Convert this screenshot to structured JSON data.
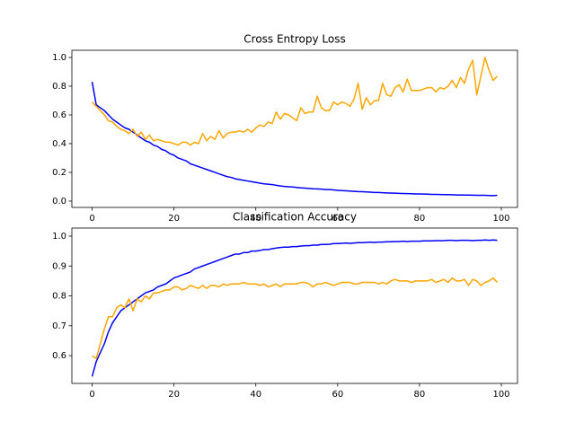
{
  "chart_data": [
    {
      "type": "line",
      "title": "Cross Entropy Loss",
      "x": [
        0,
        1,
        2,
        3,
        4,
        5,
        6,
        7,
        8,
        9,
        10,
        11,
        12,
        13,
        14,
        15,
        16,
        17,
        18,
        19,
        20,
        21,
        22,
        23,
        24,
        25,
        26,
        27,
        28,
        29,
        30,
        31,
        32,
        33,
        34,
        35,
        36,
        37,
        38,
        39,
        40,
        41,
        42,
        43,
        44,
        45,
        46,
        47,
        48,
        49,
        50,
        51,
        52,
        53,
        54,
        55,
        56,
        57,
        58,
        59,
        60,
        61,
        62,
        63,
        64,
        65,
        66,
        67,
        68,
        69,
        70,
        71,
        72,
        73,
        74,
        75,
        76,
        77,
        78,
        79,
        80,
        81,
        82,
        83,
        84,
        85,
        86,
        87,
        88,
        89,
        90,
        91,
        92,
        93,
        94,
        95,
        96,
        97,
        98,
        99
      ],
      "series": [
        {
          "color": "#0000ff",
          "values": [
            0.83,
            0.67,
            0.65,
            0.63,
            0.6,
            0.57,
            0.55,
            0.53,
            0.51,
            0.5,
            0.48,
            0.46,
            0.44,
            0.42,
            0.41,
            0.39,
            0.38,
            0.36,
            0.35,
            0.33,
            0.32,
            0.3,
            0.29,
            0.28,
            0.26,
            0.25,
            0.24,
            0.23,
            0.22,
            0.21,
            0.2,
            0.19,
            0.18,
            0.17,
            0.165,
            0.155,
            0.15,
            0.145,
            0.14,
            0.135,
            0.13,
            0.125,
            0.12,
            0.118,
            0.115,
            0.11,
            0.105,
            0.102,
            0.1,
            0.098,
            0.095,
            0.092,
            0.09,
            0.088,
            0.086,
            0.085,
            0.083,
            0.08,
            0.08,
            0.078,
            0.075,
            0.073,
            0.072,
            0.07,
            0.068,
            0.066,
            0.065,
            0.064,
            0.062,
            0.06,
            0.06,
            0.058,
            0.057,
            0.056,
            0.055,
            0.054,
            0.053,
            0.052,
            0.051,
            0.05,
            0.05,
            0.049,
            0.048,
            0.047,
            0.047,
            0.046,
            0.045,
            0.045,
            0.044,
            0.043,
            0.043,
            0.042,
            0.042,
            0.041,
            0.04,
            0.04,
            0.04,
            0.039,
            0.038,
            0.04
          ]
        },
        {
          "color": "#ffa500",
          "values": [
            0.69,
            0.66,
            0.63,
            0.6,
            0.56,
            0.55,
            0.52,
            0.5,
            0.49,
            0.47,
            0.5,
            0.45,
            0.48,
            0.43,
            0.46,
            0.42,
            0.43,
            0.42,
            0.41,
            0.41,
            0.4,
            0.39,
            0.41,
            0.41,
            0.39,
            0.41,
            0.4,
            0.47,
            0.42,
            0.45,
            0.43,
            0.49,
            0.44,
            0.47,
            0.48,
            0.48,
            0.49,
            0.48,
            0.5,
            0.48,
            0.51,
            0.53,
            0.52,
            0.55,
            0.54,
            0.62,
            0.57,
            0.61,
            0.6,
            0.58,
            0.56,
            0.65,
            0.61,
            0.62,
            0.62,
            0.73,
            0.65,
            0.63,
            0.63,
            0.69,
            0.67,
            0.69,
            0.68,
            0.66,
            0.71,
            0.82,
            0.64,
            0.72,
            0.67,
            0.7,
            0.7,
            0.82,
            0.74,
            0.73,
            0.79,
            0.81,
            0.76,
            0.85,
            0.77,
            0.77,
            0.77,
            0.78,
            0.79,
            0.79,
            0.76,
            0.79,
            0.78,
            0.8,
            0.84,
            0.79,
            0.86,
            0.82,
            0.92,
            0.98,
            0.74,
            0.87,
            1.0,
            0.91,
            0.84,
            0.87
          ]
        }
      ],
      "xlim": [
        -4.95,
        103.95
      ],
      "xticks": [
        0,
        20,
        40,
        60,
        80,
        100
      ],
      "ylim": [
        -0.044,
        1.05
      ],
      "yticks": [
        {
          "value": 0,
          "label": "0.0"
        },
        0.2,
        0.4,
        0.6,
        0.8,
        {
          "value": 1,
          "label": "1.0"
        }
      ]
    },
    {
      "type": "line",
      "title": "Classification Accuracy",
      "x": [
        0,
        1,
        2,
        3,
        4,
        5,
        6,
        7,
        8,
        9,
        10,
        11,
        12,
        13,
        14,
        15,
        16,
        17,
        18,
        19,
        20,
        21,
        22,
        23,
        24,
        25,
        26,
        27,
        28,
        29,
        30,
        31,
        32,
        33,
        34,
        35,
        36,
        37,
        38,
        39,
        40,
        41,
        42,
        43,
        44,
        45,
        46,
        47,
        48,
        49,
        50,
        51,
        52,
        53,
        54,
        55,
        56,
        57,
        58,
        59,
        60,
        61,
        62,
        63,
        64,
        65,
        66,
        67,
        68,
        69,
        70,
        71,
        72,
        73,
        74,
        75,
        76,
        77,
        78,
        79,
        80,
        81,
        82,
        83,
        84,
        85,
        86,
        87,
        88,
        89,
        90,
        91,
        92,
        93,
        94,
        95,
        96,
        97,
        98,
        99
      ],
      "series": [
        {
          "color": "#0000ff",
          "values": [
            0.53,
            0.58,
            0.61,
            0.64,
            0.68,
            0.71,
            0.73,
            0.75,
            0.76,
            0.77,
            0.78,
            0.79,
            0.8,
            0.81,
            0.815,
            0.82,
            0.83,
            0.835,
            0.84,
            0.85,
            0.86,
            0.865,
            0.87,
            0.875,
            0.88,
            0.89,
            0.895,
            0.9,
            0.905,
            0.91,
            0.915,
            0.92,
            0.925,
            0.93,
            0.935,
            0.94,
            0.94,
            0.945,
            0.945,
            0.95,
            0.95,
            0.952,
            0.955,
            0.955,
            0.958,
            0.96,
            0.962,
            0.963,
            0.963,
            0.965,
            0.965,
            0.967,
            0.968,
            0.968,
            0.97,
            0.97,
            0.972,
            0.972,
            0.973,
            0.975,
            0.975,
            0.976,
            0.977,
            0.976,
            0.977,
            0.978,
            0.978,
            0.979,
            0.98,
            0.979,
            0.98,
            0.98,
            0.981,
            0.981,
            0.982,
            0.982,
            0.983,
            0.982,
            0.983,
            0.983,
            0.983,
            0.984,
            0.984,
            0.984,
            0.985,
            0.985,
            0.985,
            0.986,
            0.986,
            0.985,
            0.986,
            0.986,
            0.986,
            0.985,
            0.986,
            0.986,
            0.987,
            0.986,
            0.987,
            0.986
          ]
        },
        {
          "color": "#ffa500",
          "values": [
            0.6,
            0.59,
            0.64,
            0.69,
            0.73,
            0.73,
            0.76,
            0.77,
            0.76,
            0.79,
            0.75,
            0.79,
            0.78,
            0.8,
            0.79,
            0.81,
            0.81,
            0.815,
            0.82,
            0.82,
            0.83,
            0.83,
            0.82,
            0.825,
            0.835,
            0.83,
            0.825,
            0.835,
            0.825,
            0.835,
            0.835,
            0.83,
            0.84,
            0.835,
            0.84,
            0.84,
            0.84,
            0.845,
            0.84,
            0.84,
            0.84,
            0.835,
            0.84,
            0.83,
            0.835,
            0.84,
            0.83,
            0.84,
            0.84,
            0.84,
            0.84,
            0.845,
            0.845,
            0.84,
            0.83,
            0.84,
            0.84,
            0.845,
            0.84,
            0.835,
            0.84,
            0.845,
            0.845,
            0.845,
            0.84,
            0.84,
            0.845,
            0.845,
            0.845,
            0.845,
            0.84,
            0.845,
            0.84,
            0.85,
            0.855,
            0.85,
            0.85,
            0.85,
            0.845,
            0.85,
            0.85,
            0.85,
            0.85,
            0.855,
            0.845,
            0.85,
            0.855,
            0.845,
            0.86,
            0.85,
            0.85,
            0.855,
            0.835,
            0.855,
            0.85,
            0.835,
            0.845,
            0.85,
            0.86,
            0.845
          ]
        }
      ],
      "xlim": [
        -4.95,
        103.95
      ],
      "xticks": [
        0,
        20,
        40,
        60,
        80,
        100
      ],
      "ylim": [
        0.507,
        1.027
      ],
      "yticks": [
        0.6,
        0.7,
        0.8,
        0.9,
        {
          "value": 1,
          "label": "1.0"
        }
      ]
    }
  ]
}
